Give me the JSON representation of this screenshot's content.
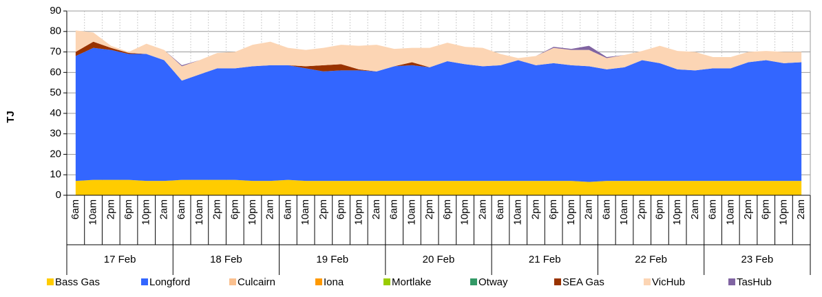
{
  "chart_data": {
    "type": "stacked-area",
    "y_label": "TJ",
    "categories": [
      "6am",
      "10am",
      "2pm",
      "6pm",
      "10pm",
      "2am",
      "6am",
      "10am",
      "2pm",
      "6pm",
      "10pm",
      "2am",
      "6am",
      "10am",
      "2pm",
      "6pm",
      "10pm",
      "2am",
      "6am",
      "10am",
      "2pm",
      "6pm",
      "10pm",
      "2am",
      "6am",
      "10am",
      "2pm",
      "6pm",
      "10pm",
      "2am",
      "6am",
      "10am",
      "2pm",
      "6pm",
      "10pm",
      "2am",
      "6am",
      "10am",
      "2pm",
      "6pm",
      "10pm",
      "2am"
    ],
    "groups": [
      "17 Feb",
      "18 Feb",
      "19 Feb",
      "20 Feb",
      "21 Feb",
      "22 Feb",
      "23 Feb"
    ],
    "ylim": [
      0,
      90
    ],
    "yticks": [
      0,
      10,
      20,
      30,
      40,
      50,
      60,
      70,
      80,
      90
    ],
    "grid": true,
    "series": [
      {
        "name": "Bass Gas",
        "color": "#ffcc00",
        "values": [
          7,
          7.5,
          7.5,
          7.5,
          7,
          7,
          7.5,
          7.5,
          7.5,
          7.5,
          7,
          7,
          7.5,
          7,
          7,
          7,
          7,
          7,
          7,
          7,
          7,
          7,
          7,
          7,
          7,
          7,
          7,
          7,
          7,
          6.5,
          7,
          7,
          7,
          7,
          7,
          7,
          7,
          7,
          7,
          7,
          7,
          7
        ]
      },
      {
        "name": "Longford",
        "color": "#3366ff",
        "values": [
          61,
          64.5,
          63.5,
          61.5,
          62,
          59,
          48.5,
          51.5,
          54.5,
          54.5,
          56,
          56.5,
          56,
          55,
          53.5,
          54,
          54,
          53.5,
          56,
          56.5,
          55.5,
          58.5,
          57,
          56,
          56.5,
          59,
          56.5,
          57.5,
          56.5,
          56.5,
          54.5,
          55.5,
          59,
          57.5,
          54.5,
          54,
          55,
          55,
          58,
          59,
          57.5,
          58
        ]
      },
      {
        "name": "Culcairn",
        "color": "#fac08f",
        "values": [
          0,
          0,
          0,
          0,
          0,
          0,
          0,
          0,
          0,
          0,
          0,
          0,
          0,
          0,
          0,
          0,
          0,
          0,
          0,
          0,
          0,
          0,
          0,
          0,
          0,
          0,
          0,
          0,
          0,
          0,
          0,
          0,
          0,
          0,
          0,
          0,
          0,
          0,
          0,
          0,
          0,
          0
        ]
      },
      {
        "name": "Iona",
        "color": "#ff9900",
        "values": [
          0,
          0,
          0,
          0,
          0,
          0,
          0,
          0,
          0,
          0,
          0,
          0,
          0,
          0,
          0,
          0,
          0,
          0,
          0,
          0,
          0,
          0,
          0,
          0,
          0,
          0,
          0,
          0,
          0,
          0,
          0,
          0,
          0,
          0,
          0,
          0,
          0,
          0,
          0,
          0,
          0,
          0
        ]
      },
      {
        "name": "Mortlake",
        "color": "#99cc00",
        "values": [
          0,
          0,
          0,
          0,
          0,
          0,
          0,
          0,
          0,
          0,
          0,
          0,
          0,
          0,
          0,
          0,
          0,
          0,
          0,
          0,
          0,
          0,
          0,
          0,
          0,
          0,
          0,
          0,
          0,
          0,
          0,
          0,
          0,
          0,
          0,
          0,
          0,
          0,
          0,
          0,
          0,
          0
        ]
      },
      {
        "name": "Otway",
        "color": "#339966",
        "values": [
          0,
          0,
          0,
          0,
          0,
          0,
          0,
          0,
          0,
          0,
          0,
          0,
          0,
          0,
          0,
          0,
          0,
          0,
          0,
          0,
          0,
          0,
          0,
          0,
          0,
          0,
          0,
          0,
          0,
          0,
          0,
          0,
          0,
          0,
          0,
          0,
          0,
          0,
          0,
          0,
          0,
          0
        ]
      },
      {
        "name": "SEA Gas",
        "color": "#993300",
        "values": [
          2,
          3,
          1,
          0.5,
          0,
          0,
          0,
          0,
          0,
          0,
          0,
          0,
          0,
          1,
          3,
          3,
          0.5,
          0,
          0,
          1.5,
          0,
          0,
          0,
          0,
          0,
          0,
          0,
          0,
          0,
          0,
          0,
          0,
          0,
          0,
          0,
          0,
          0,
          0,
          0,
          0,
          0,
          0
        ]
      },
      {
        "name": "VicHub",
        "color": "#fcd5b4",
        "values": [
          10.5,
          4.5,
          1,
          0.5,
          5,
          5,
          7,
          7,
          7.5,
          8,
          10.5,
          11.5,
          8.5,
          8,
          8.5,
          9.5,
          11.5,
          13,
          8.5,
          7,
          9.5,
          9,
          8.5,
          9,
          5.5,
          1,
          4.5,
          7.5,
          7.5,
          8,
          5.5,
          6,
          4.5,
          8.5,
          9,
          9,
          5.5,
          5.5,
          5,
          4.5,
          5.5,
          5
        ]
      },
      {
        "name": "TasHub",
        "color": "#8064a2",
        "values": [
          0,
          0,
          0,
          0,
          0,
          0,
          0.5,
          0,
          0,
          0,
          0,
          0,
          0,
          0,
          0,
          0,
          0,
          0,
          0,
          0,
          0,
          0,
          0,
          0,
          0,
          0,
          0,
          0.5,
          0.5,
          2,
          0.5,
          0,
          0,
          0,
          0,
          0,
          0,
          0,
          0,
          0,
          0,
          0
        ]
      }
    ]
  }
}
